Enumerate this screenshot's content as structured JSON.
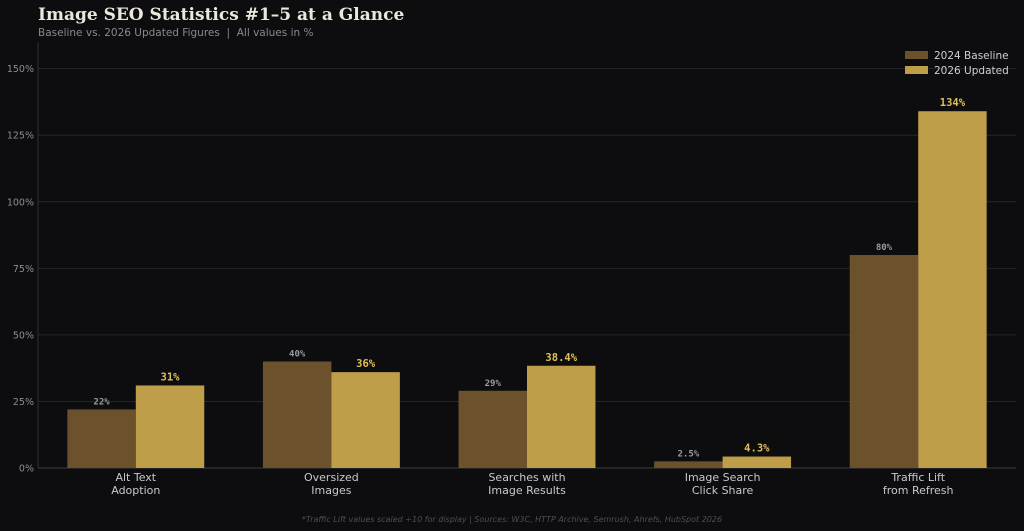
{
  "title": "Image SEO Statistics #1–5 at a Glance",
  "subtitle": "Baseline vs. 2026 Updated Figures  |  All values in %",
  "footnote": "*Traffic Lift values scaled ÷10 for display  |  Sources: W3C, HTTP Archive, Semrush, Ahrefs, HubSpot 2026",
  "colors": {
    "background": "#0d0d0f",
    "baseline": "#6b522c",
    "updated": "#bf9e4a",
    "updated_label": "#e0bf55",
    "baseline_label": "#9a9aa0",
    "grid": "#26262a",
    "tick": "#8e8e92",
    "category": "#c9c9cc"
  },
  "chart_data": {
    "type": "bar",
    "title": "Image SEO Statistics #1–5 at a Glance",
    "categories": [
      [
        "Alt Text",
        "Adoption"
      ],
      [
        "Oversized",
        "Images"
      ],
      [
        "Searches with",
        "Image Results"
      ],
      [
        "Image Search",
        "Click Share"
      ],
      [
        "Traffic Lift",
        "from Refresh"
      ]
    ],
    "series": [
      {
        "name": "2024 Baseline",
        "values": [
          22,
          40,
          29,
          2.5,
          80
        ],
        "labels": [
          "22%",
          "40%",
          "29%",
          "2.5%",
          "80%"
        ]
      },
      {
        "name": "2026 Updated",
        "values": [
          31,
          36,
          38.4,
          4.3,
          134
        ],
        "labels": [
          "31%",
          "36%",
          "38.4%",
          "4.3%",
          "134%"
        ]
      }
    ],
    "ylim": [
      0,
      160
    ],
    "yticks": [
      0,
      25,
      50,
      75,
      100,
      125,
      150
    ],
    "ytick_labels": [
      "0%",
      "25%",
      "50%",
      "75%",
      "100%",
      "125%",
      "150%"
    ],
    "grid": true,
    "legend_position": "top-right"
  }
}
